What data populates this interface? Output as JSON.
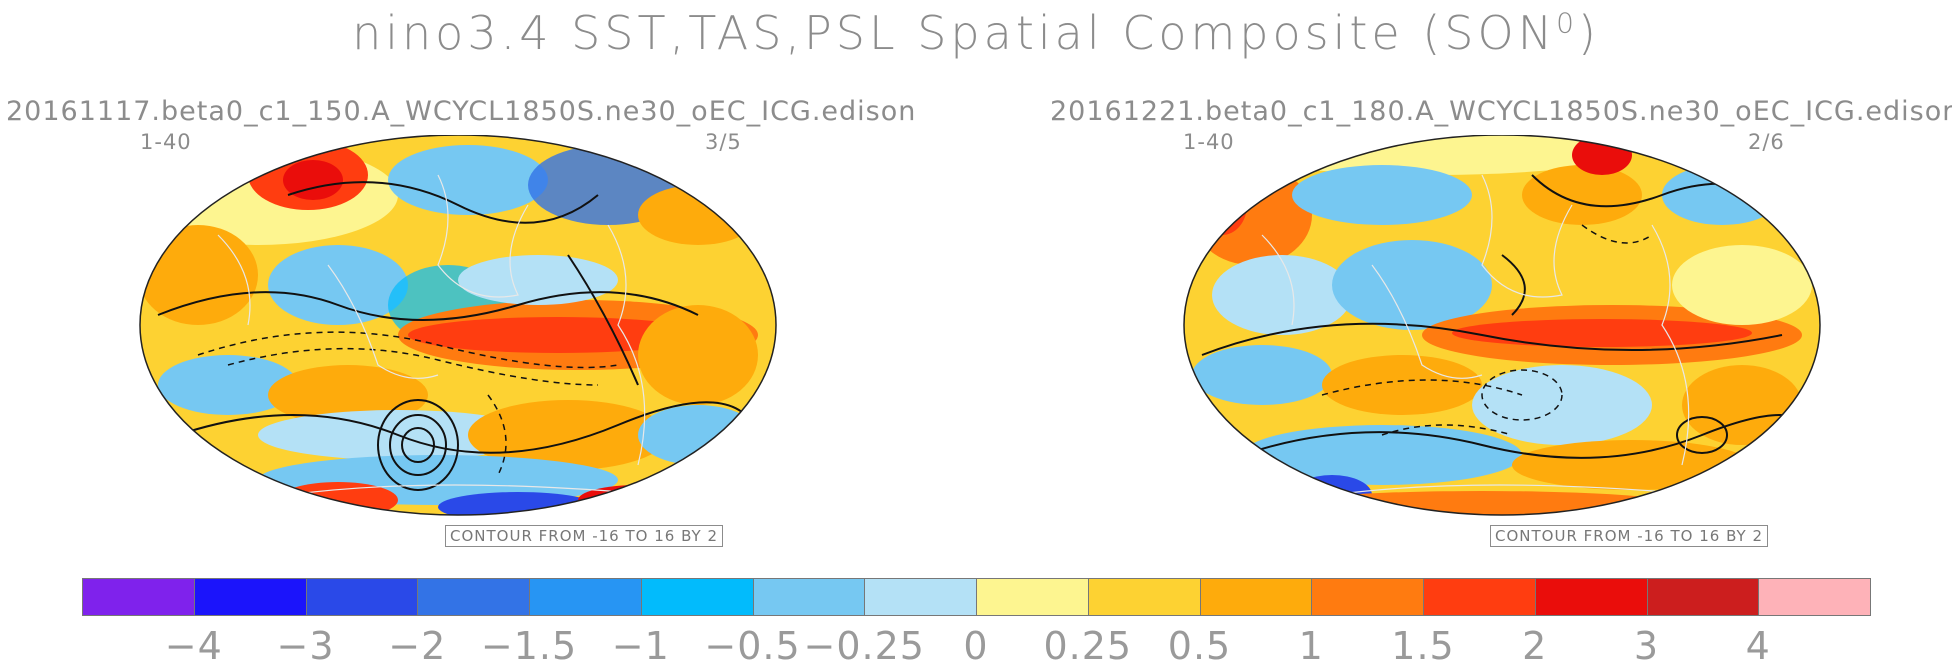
{
  "title": "nino3.4 SST,TAS,PSL Spatial Composite (SON",
  "title_sup": "0",
  "title_close": ")",
  "panels": [
    {
      "case": "20161117.beta0_c1_150.A_WCYCL1850S.ne30_oEC_ICG.edison",
      "years": "1-40",
      "count": "3/5",
      "contour": "CONTOUR FROM -16 TO 16 BY 2"
    },
    {
      "case": "20161221.beta0_c1_180.A_WCYCL1850S.ne30_oEC_ICG.edison",
      "years": "1-40",
      "count": "2/6",
      "contour": "CONTOUR FROM -16 TO 16 BY 2"
    }
  ],
  "colorbar": {
    "colors": [
      "#7f22ec",
      "#1b14fb",
      "#2a49e8",
      "#3373e6",
      "#2795f3",
      "#02bbfc",
      "#76c8f2",
      "#b4e1f6",
      "#fdf590",
      "#fdd232",
      "#feab0c",
      "#ff7b10",
      "#ff3d10",
      "#ea0d0b",
      "#cc1e1e",
      "#feb2b8"
    ],
    "labels": [
      "−4",
      "−3",
      "−2",
      "−1.5",
      "−1",
      "−0.5",
      "−0.25",
      "0",
      "0.25",
      "0.5",
      "1",
      "1.5",
      "2",
      "3",
      "4"
    ]
  }
}
